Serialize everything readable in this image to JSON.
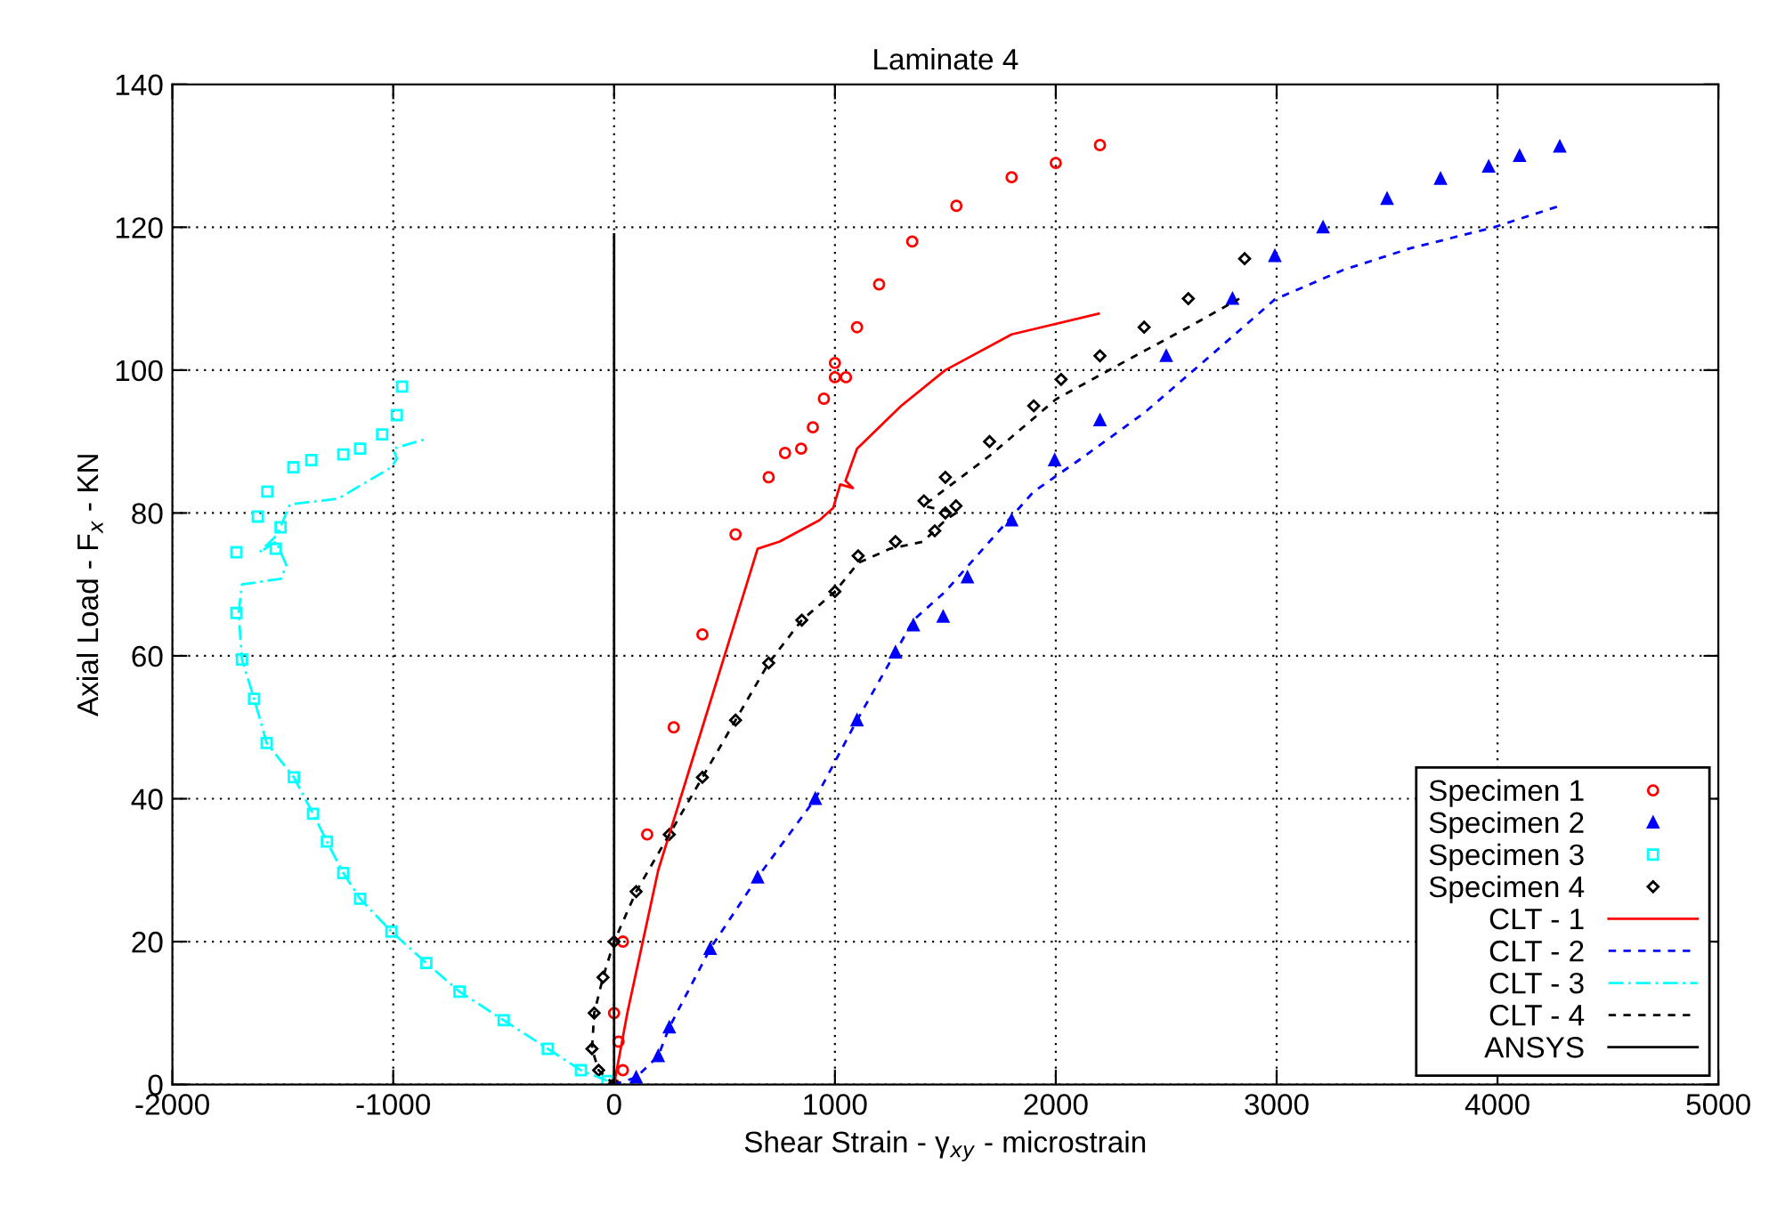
{
  "chart_data": {
    "type": "scatter",
    "title": "Laminate 4",
    "xlabel": "Shear Strain - γ$_{xy}$ - microstrain",
    "ylabel": "Axial Load - F$_{x}$ - KN",
    "xlim": [
      -2000,
      5000
    ],
    "ylim": [
      0,
      140
    ],
    "xticks": [
      -2000,
      -1000,
      0,
      1000,
      2000,
      3000,
      4000,
      5000
    ],
    "yticks": [
      0,
      20,
      40,
      60,
      80,
      100,
      120,
      140
    ],
    "grid": true,
    "legend": "bottom right",
    "series": [
      {
        "name": "Specimen 1",
        "marker": "circle",
        "color": "#ff0000",
        "x": [
          0,
          40,
          20,
          0,
          40,
          150,
          270,
          400,
          550,
          700,
          774,
          847,
          900,
          950,
          1000,
          1050,
          1000,
          1100,
          1200,
          1350,
          1550,
          1800,
          2000,
          2200
        ],
        "values": [
          0,
          2,
          6,
          10,
          20,
          35,
          50,
          63,
          77,
          85,
          88.4,
          89,
          92,
          96,
          99,
          99,
          101,
          106,
          112,
          118,
          123,
          127,
          129,
          131.5
        ]
      },
      {
        "name": "Specimen 2",
        "marker": "triangle",
        "color": "#0000ff",
        "x": [
          100,
          200,
          250,
          435,
          650,
          911,
          1100,
          1274,
          1355,
          1490,
          1600,
          1800,
          1995,
          2200,
          2500,
          2800,
          2992,
          3210,
          3500,
          3742,
          3960,
          4100,
          4282
        ],
        "values": [
          1,
          4,
          8,
          19,
          29,
          40,
          51,
          60.5,
          64.3,
          65.5,
          71,
          79,
          87.4,
          93,
          102,
          110,
          116,
          120,
          124,
          126.8,
          128.5,
          130,
          131.3
        ]
      },
      {
        "name": "Specimen 3",
        "marker": "square",
        "color": "#00ffff",
        "x": [
          -30,
          -150,
          -300,
          -500,
          -700,
          -850,
          -1008,
          -1150,
          -1226,
          -1300,
          -1363,
          -1450,
          -1573,
          -1630,
          -1685,
          -1710,
          -1710,
          -1532,
          -1510,
          -1613,
          -1570,
          -1452,
          -1371,
          -1226,
          -1150,
          -1050,
          -984,
          -960
        ],
        "values": [
          0.5,
          2,
          5,
          9,
          13,
          17,
          21.4,
          26,
          29.6,
          34,
          37.9,
          43,
          47.8,
          54,
          59.5,
          66,
          74.5,
          75,
          78,
          79.5,
          83,
          86.4,
          87.4,
          88.2,
          89,
          91,
          93.7,
          97.7
        ]
      },
      {
        "name": "Specimen 4",
        "marker": "diamond",
        "color": "#000000",
        "x": [
          0,
          -70,
          -100,
          -90,
          -50,
          0,
          100,
          250,
          400,
          550,
          700,
          850,
          1000,
          1105,
          1274,
          1452,
          1500,
          1548,
          1403,
          1500,
          1700,
          1900,
          2024,
          2200,
          2400,
          2600,
          2855
        ],
        "values": [
          0,
          2,
          5,
          10,
          15,
          20,
          27,
          35,
          43,
          51,
          59,
          65,
          69,
          74,
          76,
          77.5,
          80,
          81,
          81.7,
          85,
          90,
          95,
          98.7,
          102,
          106,
          110,
          115.6
        ]
      },
      {
        "name": "CLT - 1",
        "type": "line",
        "line_style": "solid",
        "color": "#ff0000",
        "x": [
          0,
          60,
          200,
          400,
          550,
          650,
          750,
          930,
          992,
          1024,
          1081,
          1048,
          1100,
          1300,
          1500,
          1800,
          2194
        ],
        "values": [
          0,
          10,
          30,
          50,
          65,
          75,
          76,
          79,
          80.7,
          84,
          83.5,
          84.5,
          89,
          95,
          100,
          105,
          107.9
        ]
      },
      {
        "name": "CLT - 2",
        "type": "line",
        "line_style": "dashed",
        "color": "#0000ff",
        "x": [
          0,
          100,
          200,
          250,
          435,
          650,
          911,
          1100,
          1274,
          1355,
          1500,
          1700,
          1900,
          2105,
          2400,
          2700,
          2992,
          3300,
          3600,
          3984,
          4282
        ],
        "values": [
          0,
          1,
          4,
          8,
          19,
          29,
          40,
          51,
          60.5,
          65,
          69,
          76,
          83,
          87.4,
          94,
          102,
          109.9,
          114,
          117,
          120,
          123
        ]
      },
      {
        "name": "CLT - 3",
        "type": "line",
        "line_style": "dashdot",
        "color": "#00ffff",
        "x": [
          -30,
          -150,
          -300,
          -500,
          -700,
          -850,
          -1008,
          -1150,
          -1226,
          -1300,
          -1363,
          -1450,
          -1573,
          -1630,
          -1685,
          -1700,
          -1685,
          -1508,
          -1484,
          -1530,
          -1605,
          -1524,
          -1468,
          -1250,
          -1008,
          -984,
          -1000,
          -847
        ],
        "values": [
          0.5,
          2,
          5,
          9,
          13,
          17,
          21.4,
          26,
          29.6,
          34,
          37.9,
          43,
          47.8,
          54,
          59.5,
          66,
          70,
          70.8,
          72.7,
          76,
          74.5,
          77,
          81.2,
          82,
          86.4,
          87.6,
          89,
          90.4
        ]
      },
      {
        "name": "CLT - 4",
        "type": "line",
        "line_style": "dashed",
        "color": "#000000",
        "x": [
          0,
          -70,
          -100,
          -90,
          -50,
          0,
          100,
          250,
          400,
          550,
          700,
          850,
          1000,
          1105,
          1250,
          1400,
          1500,
          1548,
          1400,
          1700,
          2000,
          2300,
          2600,
          2831
        ],
        "values": [
          0,
          2,
          5,
          10,
          15,
          20,
          27,
          35,
          43,
          51,
          59,
          65,
          69,
          73,
          75,
          76,
          79,
          80,
          81,
          88,
          95.9,
          101,
          106,
          110
        ]
      },
      {
        "name": "ANSYS",
        "type": "line",
        "line_style": "solid",
        "color": "#000000",
        "x": [
          0,
          0
        ],
        "values": [
          0,
          119
        ]
      }
    ]
  }
}
